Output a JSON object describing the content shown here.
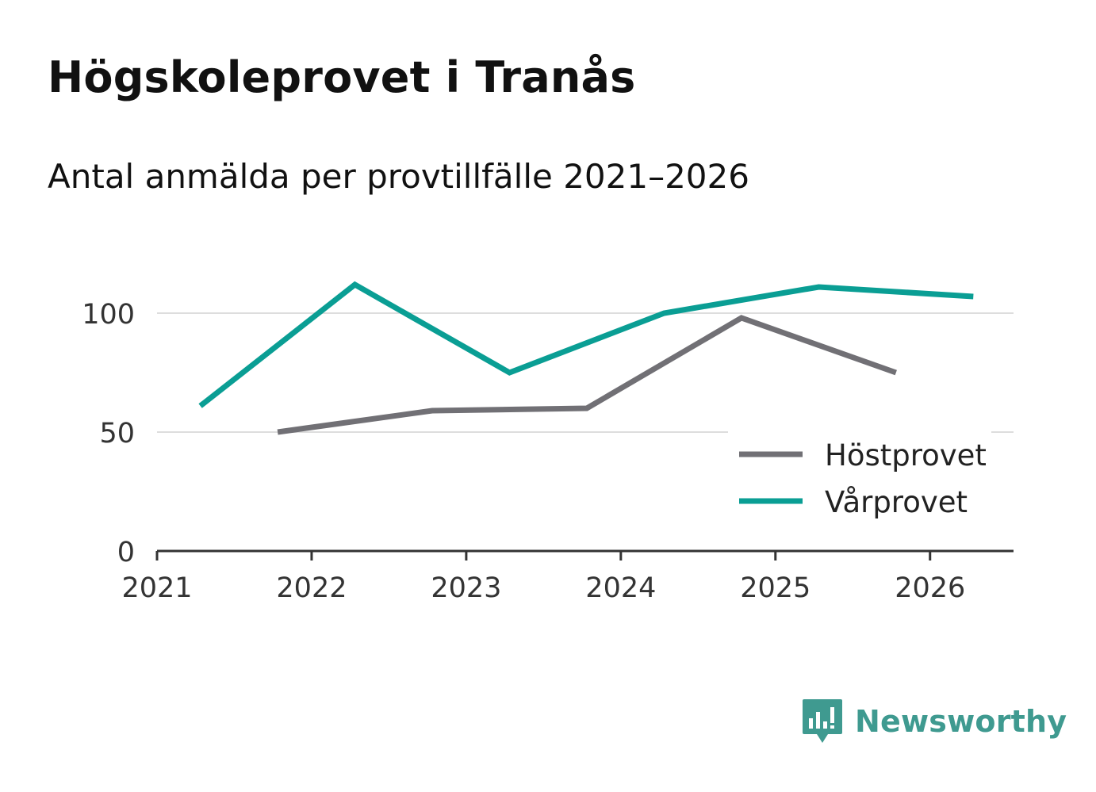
{
  "chart_data": {
    "type": "line",
    "title": "Högskoleprovet i Tranås",
    "subtitle": "Antal anmälda per provtillfälle 2021–2026",
    "xlabel": "",
    "ylabel": "",
    "xlim": [
      2021,
      2026.54
    ],
    "ylim": [
      0,
      120
    ],
    "x_ticks": [
      "2021",
      "2022",
      "2023",
      "2024",
      "2025",
      "2026"
    ],
    "y_ticks": [
      "0",
      "50",
      "100"
    ],
    "grid": true,
    "legend_position": "bottom-right",
    "series": [
      {
        "name": "Höstprovet",
        "color": "#717075",
        "points": [
          {
            "x": 2021.78,
            "y": 50
          },
          {
            "x": 2022.78,
            "y": 59
          },
          {
            "x": 2023.78,
            "y": 60
          },
          {
            "x": 2024.78,
            "y": 98
          },
          {
            "x": 2025.78,
            "y": 75
          }
        ]
      },
      {
        "name": "Vårprovet",
        "color": "#0a9e94",
        "points": [
          {
            "x": 2021.28,
            "y": 61
          },
          {
            "x": 2022.28,
            "y": 112
          },
          {
            "x": 2023.28,
            "y": 75
          },
          {
            "x": 2024.28,
            "y": 100
          },
          {
            "x": 2025.28,
            "y": 111
          },
          {
            "x": 2026.28,
            "y": 107
          }
        ]
      }
    ]
  },
  "brand": {
    "name": "Newsworthy",
    "logo_icon": "newsworthy-bar-chart-icon",
    "color": "#3f9a90"
  }
}
